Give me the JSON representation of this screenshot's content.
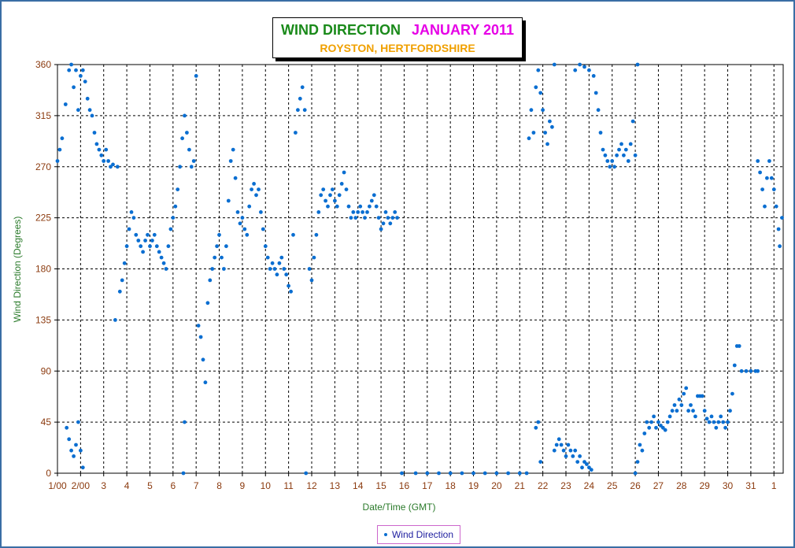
{
  "chart_data": {
    "type": "scatter",
    "title": "WIND DIRECTION",
    "title_month": "JANUARY 2011",
    "subtitle": "ROYSTON, HERTFORDSHIRE",
    "xlabel": "Date/Time (GMT)",
    "ylabel": "Wind Direction (Degrees)",
    "ylim": [
      0,
      360
    ],
    "yticks": [
      0,
      45,
      90,
      135,
      180,
      225,
      270,
      315,
      360
    ],
    "xlim": [
      1,
      32.4
    ],
    "xticks": [
      {
        "day": 1,
        "label": "1/00"
      },
      {
        "day": 2,
        "label": "2/00"
      },
      {
        "day": 3,
        "label": "3"
      },
      {
        "day": 4,
        "label": "4"
      },
      {
        "day": 5,
        "label": "5"
      },
      {
        "day": 6,
        "label": "6"
      },
      {
        "day": 7,
        "label": "7"
      },
      {
        "day": 8,
        "label": "8"
      },
      {
        "day": 9,
        "label": "9"
      },
      {
        "day": 10,
        "label": "10"
      },
      {
        "day": 11,
        "label": "11"
      },
      {
        "day": 12,
        "label": "12"
      },
      {
        "day": 13,
        "label": "13"
      },
      {
        "day": 14,
        "label": "14"
      },
      {
        "day": 15,
        "label": "15"
      },
      {
        "day": 16,
        "label": "16"
      },
      {
        "day": 17,
        "label": "17"
      },
      {
        "day": 18,
        "label": "18"
      },
      {
        "day": 19,
        "label": "19"
      },
      {
        "day": 20,
        "label": "20"
      },
      {
        "day": 21,
        "label": "21"
      },
      {
        "day": 22,
        "label": "22"
      },
      {
        "day": 23,
        "label": "23"
      },
      {
        "day": 24,
        "label": "24"
      },
      {
        "day": 25,
        "label": "25"
      },
      {
        "day": 26,
        "label": "26"
      },
      {
        "day": 27,
        "label": "27"
      },
      {
        "day": 28,
        "label": "28"
      },
      {
        "day": 29,
        "label": "29"
      },
      {
        "day": 30,
        "label": "30"
      },
      {
        "day": 31,
        "label": "31"
      },
      {
        "day": 32,
        "label": "1"
      }
    ],
    "grid": true,
    "legend": {
      "position": "bottom-center",
      "label": "Wind Direction"
    },
    "series": [
      {
        "name": "Wind Direction",
        "color": "#0a6ed1",
        "points": [
          [
            1.0,
            275
          ],
          [
            1.1,
            285
          ],
          [
            1.2,
            295
          ],
          [
            1.35,
            325
          ],
          [
            1.5,
            355
          ],
          [
            1.6,
            360
          ],
          [
            1.7,
            340
          ],
          [
            1.8,
            355
          ],
          [
            1.9,
            320
          ],
          [
            2.0,
            350
          ],
          [
            2.1,
            355
          ],
          [
            2.2,
            345
          ],
          [
            2.3,
            330
          ],
          [
            2.4,
            320
          ],
          [
            2.5,
            315
          ],
          [
            2.6,
            300
          ],
          [
            2.7,
            290
          ],
          [
            2.8,
            285
          ],
          [
            2.9,
            280
          ],
          [
            3.0,
            275
          ],
          [
            3.1,
            285
          ],
          [
            3.2,
            275
          ],
          [
            3.3,
            270
          ],
          [
            3.4,
            272
          ],
          [
            3.6,
            270
          ],
          [
            1.4,
            40
          ],
          [
            1.5,
            30
          ],
          [
            1.6,
            20
          ],
          [
            1.7,
            15
          ],
          [
            1.8,
            25
          ],
          [
            1.9,
            45
          ],
          [
            2.0,
            20
          ],
          [
            2.1,
            5
          ],
          [
            3.5,
            135
          ],
          [
            3.7,
            160
          ],
          [
            3.8,
            170
          ],
          [
            3.9,
            185
          ],
          [
            4.0,
            200
          ],
          [
            4.1,
            215
          ],
          [
            4.2,
            230
          ],
          [
            4.3,
            225
          ],
          [
            4.4,
            210
          ],
          [
            4.5,
            205
          ],
          [
            4.6,
            200
          ],
          [
            4.7,
            195
          ],
          [
            4.8,
            205
          ],
          [
            4.9,
            210
          ],
          [
            5.0,
            200
          ],
          [
            5.1,
            205
          ],
          [
            5.2,
            210
          ],
          [
            5.3,
            200
          ],
          [
            5.4,
            195
          ],
          [
            5.5,
            190
          ],
          [
            5.6,
            185
          ],
          [
            5.7,
            180
          ],
          [
            5.8,
            200
          ],
          [
            5.9,
            215
          ],
          [
            6.0,
            225
          ],
          [
            6.1,
            235
          ],
          [
            6.2,
            250
          ],
          [
            6.3,
            270
          ],
          [
            6.4,
            295
          ],
          [
            6.5,
            315
          ],
          [
            6.6,
            300
          ],
          [
            6.7,
            285
          ],
          [
            6.8,
            270
          ],
          [
            6.9,
            275
          ],
          [
            7.0,
            350
          ],
          [
            6.5,
            45
          ],
          [
            6.45,
            0
          ],
          [
            7.1,
            130
          ],
          [
            7.2,
            120
          ],
          [
            7.3,
            100
          ],
          [
            7.4,
            80
          ],
          [
            7.5,
            150
          ],
          [
            7.6,
            170
          ],
          [
            7.7,
            180
          ],
          [
            7.8,
            190
          ],
          [
            7.9,
            200
          ],
          [
            8.0,
            210
          ],
          [
            8.1,
            190
          ],
          [
            8.2,
            180
          ],
          [
            8.3,
            200
          ],
          [
            8.4,
            240
          ],
          [
            8.5,
            275
          ],
          [
            8.6,
            285
          ],
          [
            8.7,
            260
          ],
          [
            8.8,
            230
          ],
          [
            8.9,
            220
          ],
          [
            9.0,
            225
          ],
          [
            9.1,
            215
          ],
          [
            9.2,
            210
          ],
          [
            9.3,
            235
          ],
          [
            9.4,
            250
          ],
          [
            9.5,
            255
          ],
          [
            9.6,
            245
          ],
          [
            9.7,
            250
          ],
          [
            9.8,
            230
          ],
          [
            9.9,
            215
          ],
          [
            10.0,
            200
          ],
          [
            10.1,
            190
          ],
          [
            10.2,
            180
          ],
          [
            10.3,
            185
          ],
          [
            10.4,
            180
          ],
          [
            10.5,
            175
          ],
          [
            10.6,
            185
          ],
          [
            10.7,
            190
          ],
          [
            10.8,
            180
          ],
          [
            10.9,
            175
          ],
          [
            11.0,
            165
          ],
          [
            11.1,
            160
          ],
          [
            11.2,
            210
          ],
          [
            11.3,
            300
          ],
          [
            11.4,
            320
          ],
          [
            11.5,
            330
          ],
          [
            11.6,
            340
          ],
          [
            11.7,
            320
          ],
          [
            11.75,
            0
          ],
          [
            11.9,
            180
          ],
          [
            12.0,
            170
          ],
          [
            12.1,
            190
          ],
          [
            12.2,
            210
          ],
          [
            12.3,
            230
          ],
          [
            12.4,
            245
          ],
          [
            12.5,
            250
          ],
          [
            12.6,
            240
          ],
          [
            12.7,
            235
          ],
          [
            12.8,
            245
          ],
          [
            12.9,
            250
          ],
          [
            13.0,
            240
          ],
          [
            13.1,
            235
          ],
          [
            13.2,
            245
          ],
          [
            13.3,
            255
          ],
          [
            13.4,
            265
          ],
          [
            13.5,
            250
          ],
          [
            13.6,
            235
          ],
          [
            13.7,
            225
          ],
          [
            13.8,
            230
          ],
          [
            13.9,
            225
          ],
          [
            14.0,
            230
          ],
          [
            14.1,
            235
          ],
          [
            14.2,
            230
          ],
          [
            14.3,
            225
          ],
          [
            14.4,
            230
          ],
          [
            14.5,
            235
          ],
          [
            14.6,
            240
          ],
          [
            14.7,
            245
          ],
          [
            14.8,
            235
          ],
          [
            14.9,
            225
          ],
          [
            15.0,
            215
          ],
          [
            15.1,
            220
          ],
          [
            15.2,
            230
          ],
          [
            15.3,
            225
          ],
          [
            15.4,
            220
          ],
          [
            15.5,
            225
          ],
          [
            15.6,
            230
          ],
          [
            15.7,
            225
          ],
          [
            15.9,
            0
          ],
          [
            16.5,
            0
          ],
          [
            17.0,
            0
          ],
          [
            17.5,
            0
          ],
          [
            18.0,
            0
          ],
          [
            18.5,
            0
          ],
          [
            19.0,
            0
          ],
          [
            19.5,
            0
          ],
          [
            20.0,
            0
          ],
          [
            20.5,
            0
          ],
          [
            21.0,
            0
          ],
          [
            21.3,
            0
          ],
          [
            21.4,
            295
          ],
          [
            21.5,
            320
          ],
          [
            21.6,
            300
          ],
          [
            21.7,
            340
          ],
          [
            21.8,
            355
          ],
          [
            21.9,
            335
          ],
          [
            22.0,
            320
          ],
          [
            22.1,
            300
          ],
          [
            22.2,
            290
          ],
          [
            22.3,
            310
          ],
          [
            22.4,
            305
          ],
          [
            22.5,
            360
          ],
          [
            21.7,
            40
          ],
          [
            21.8,
            45
          ],
          [
            21.9,
            10
          ],
          [
            22.5,
            20
          ],
          [
            22.6,
            25
          ],
          [
            22.7,
            30
          ],
          [
            22.8,
            25
          ],
          [
            22.9,
            20
          ],
          [
            23.0,
            15
          ],
          [
            23.1,
            25
          ],
          [
            23.2,
            20
          ],
          [
            23.3,
            15
          ],
          [
            23.4,
            20
          ],
          [
            23.5,
            10
          ],
          [
            23.6,
            15
          ],
          [
            23.7,
            5
          ],
          [
            23.8,
            10
          ],
          [
            23.9,
            8
          ],
          [
            24.0,
            5
          ],
          [
            24.1,
            3
          ],
          [
            23.4,
            355
          ],
          [
            23.6,
            360
          ],
          [
            23.8,
            358
          ],
          [
            24.0,
            355
          ],
          [
            24.2,
            350
          ],
          [
            24.3,
            335
          ],
          [
            24.4,
            320
          ],
          [
            24.5,
            300
          ],
          [
            24.6,
            285
          ],
          [
            24.7,
            280
          ],
          [
            24.8,
            275
          ],
          [
            24.9,
            270
          ],
          [
            25.0,
            275
          ],
          [
            25.1,
            270
          ],
          [
            25.2,
            280
          ],
          [
            25.3,
            285
          ],
          [
            25.4,
            290
          ],
          [
            25.5,
            280
          ],
          [
            25.6,
            285
          ],
          [
            25.7,
            275
          ],
          [
            25.8,
            290
          ],
          [
            25.9,
            310
          ],
          [
            26.0,
            280
          ],
          [
            26.1,
            360
          ],
          [
            26.0,
            0
          ],
          [
            26.1,
            10
          ],
          [
            26.2,
            25
          ],
          [
            26.3,
            20
          ],
          [
            26.4,
            35
          ],
          [
            26.5,
            45
          ],
          [
            26.6,
            40
          ],
          [
            26.7,
            45
          ],
          [
            26.8,
            50
          ],
          [
            26.9,
            40
          ],
          [
            27.0,
            45
          ],
          [
            27.1,
            42
          ],
          [
            27.2,
            40
          ],
          [
            27.3,
            38
          ],
          [
            27.4,
            45
          ],
          [
            27.5,
            50
          ],
          [
            27.6,
            55
          ],
          [
            27.7,
            60
          ],
          [
            27.8,
            55
          ],
          [
            27.9,
            65
          ],
          [
            28.0,
            60
          ],
          [
            28.1,
            70
          ],
          [
            28.2,
            75
          ],
          [
            28.3,
            55
          ],
          [
            28.4,
            60
          ],
          [
            28.5,
            55
          ],
          [
            28.6,
            50
          ],
          [
            28.7,
            68
          ],
          [
            28.8,
            68
          ],
          [
            28.9,
            68
          ],
          [
            29.0,
            55
          ],
          [
            29.1,
            48
          ],
          [
            29.2,
            45
          ],
          [
            29.3,
            50
          ],
          [
            29.4,
            45
          ],
          [
            29.5,
            40
          ],
          [
            29.6,
            45
          ],
          [
            29.7,
            50
          ],
          [
            29.8,
            45
          ],
          [
            29.9,
            40
          ],
          [
            30.0,
            45
          ],
          [
            30.1,
            55
          ],
          [
            30.2,
            70
          ],
          [
            30.3,
            95
          ],
          [
            30.4,
            112
          ],
          [
            30.5,
            112
          ],
          [
            30.6,
            90
          ],
          [
            30.8,
            90
          ],
          [
            31.0,
            90
          ],
          [
            31.2,
            90
          ],
          [
            31.3,
            90
          ],
          [
            31.3,
            275
          ],
          [
            31.4,
            265
          ],
          [
            31.5,
            250
          ],
          [
            31.6,
            235
          ],
          [
            31.7,
            260
          ],
          [
            31.8,
            275
          ],
          [
            31.9,
            260
          ],
          [
            32.0,
            250
          ],
          [
            32.1,
            235
          ],
          [
            32.2,
            215
          ],
          [
            32.25,
            200
          ],
          [
            32.35,
            225
          ]
        ]
      }
    ]
  }
}
